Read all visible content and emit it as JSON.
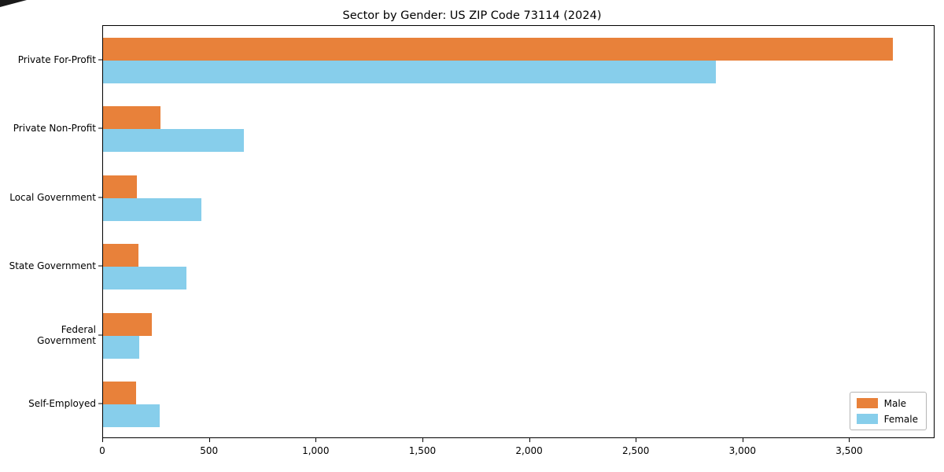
{
  "chart_data": {
    "type": "bar",
    "orientation": "horizontal",
    "title": "Sector by Gender: US ZIP Code 73114 (2024)",
    "categories": [
      "Private For-Profit",
      "Private Non-Profit",
      "Local Government",
      "State Government",
      "Federal Government",
      "Self-Employed"
    ],
    "series": [
      {
        "name": "Male",
        "color": "#e8813a",
        "values": [
          3700,
          270,
          160,
          165,
          230,
          155
        ]
      },
      {
        "name": "Female",
        "color": "#87ceeb",
        "values": [
          2870,
          660,
          460,
          390,
          170,
          265
        ]
      }
    ],
    "xlabel": "",
    "ylabel": "",
    "xlim": [
      0,
      3900
    ],
    "xticks": [
      0,
      500,
      1000,
      1500,
      2000,
      2500,
      3000,
      3500
    ],
    "xticklabels": [
      "0",
      "500",
      "1,000",
      "1,500",
      "2,000",
      "2,500",
      "3,000",
      "3,500"
    ],
    "grid": false,
    "legend_position": "lower right",
    "legend_entries": [
      "Male",
      "Female"
    ]
  }
}
